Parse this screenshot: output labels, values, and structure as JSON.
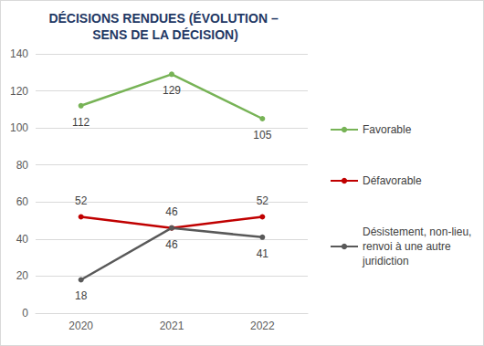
{
  "chart_data": {
    "type": "line",
    "title": "DÉCISIONS RENDUES (ÉVOLUTION – SENS DE LA DÉCISION)",
    "categories": [
      "2020",
      "2021",
      "2022"
    ],
    "series": [
      {
        "name": "Favorable",
        "color": "#77b356",
        "values": [
          112,
          129,
          105
        ]
      },
      {
        "name": "Défavorable",
        "color": "#c00000",
        "values": [
          52,
          46,
          52
        ]
      },
      {
        "name": "Désistement, non-lieu, renvoi à une autre juridiction",
        "color": "#595959",
        "values": [
          18,
          46,
          41
        ]
      }
    ],
    "ylim": [
      0,
      140
    ],
    "yticks": [
      0,
      20,
      40,
      60,
      80,
      100,
      120,
      140
    ],
    "grid": true,
    "legend": "right",
    "data_labels": true,
    "marker": "circle"
  }
}
